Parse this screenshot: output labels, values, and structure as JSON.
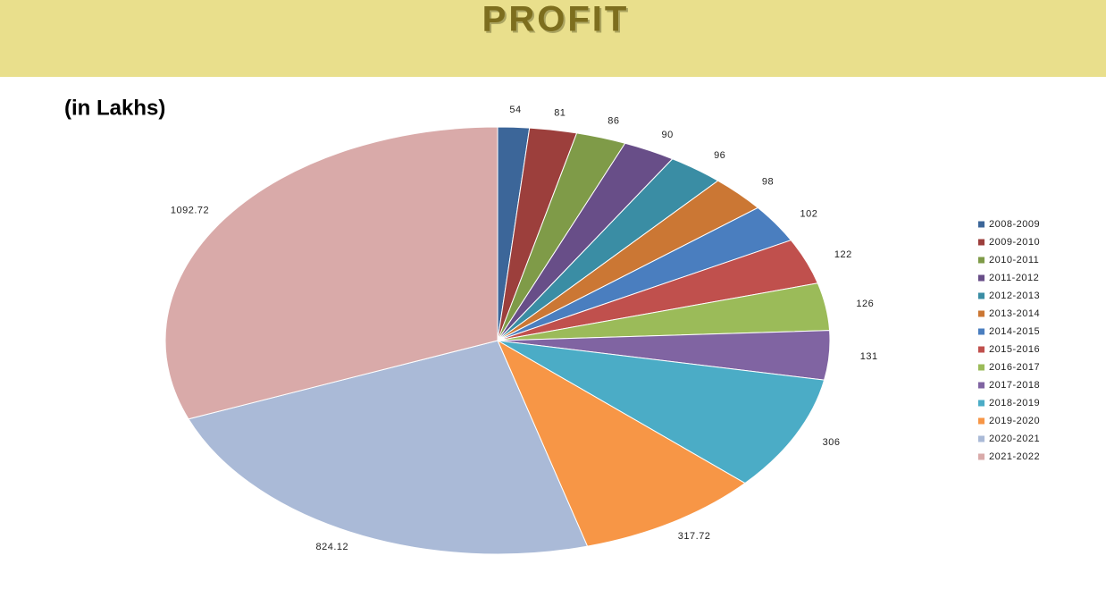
{
  "chart_data": {
    "type": "pie",
    "title": "PROFIT",
    "subtitle": "(in Lakhs)",
    "categories": [
      "2008-2009",
      "2009-2010",
      "2010-2011",
      "2011-2012",
      "2012-2013",
      "2013-2014",
      "2014-2015",
      "2015-2016",
      "2016-2017",
      "2017-2018",
      "2018-2019",
      "2019-2020",
      "2020-2021",
      "2021-2022"
    ],
    "values": [
      54,
      81,
      86,
      90,
      96,
      98,
      102,
      122,
      126,
      131,
      306,
      317.72,
      824.12,
      1092.72
    ],
    "colors": [
      "#3c6699",
      "#9c3f3c",
      "#7f9b48",
      "#684e88",
      "#3a8da4",
      "#cb7734",
      "#4a7ebf",
      "#c0504d",
      "#9bbb59",
      "#8064a2",
      "#4bacc6",
      "#f79646",
      "#aabad7",
      "#d9aaa9"
    ],
    "legend": "right"
  }
}
